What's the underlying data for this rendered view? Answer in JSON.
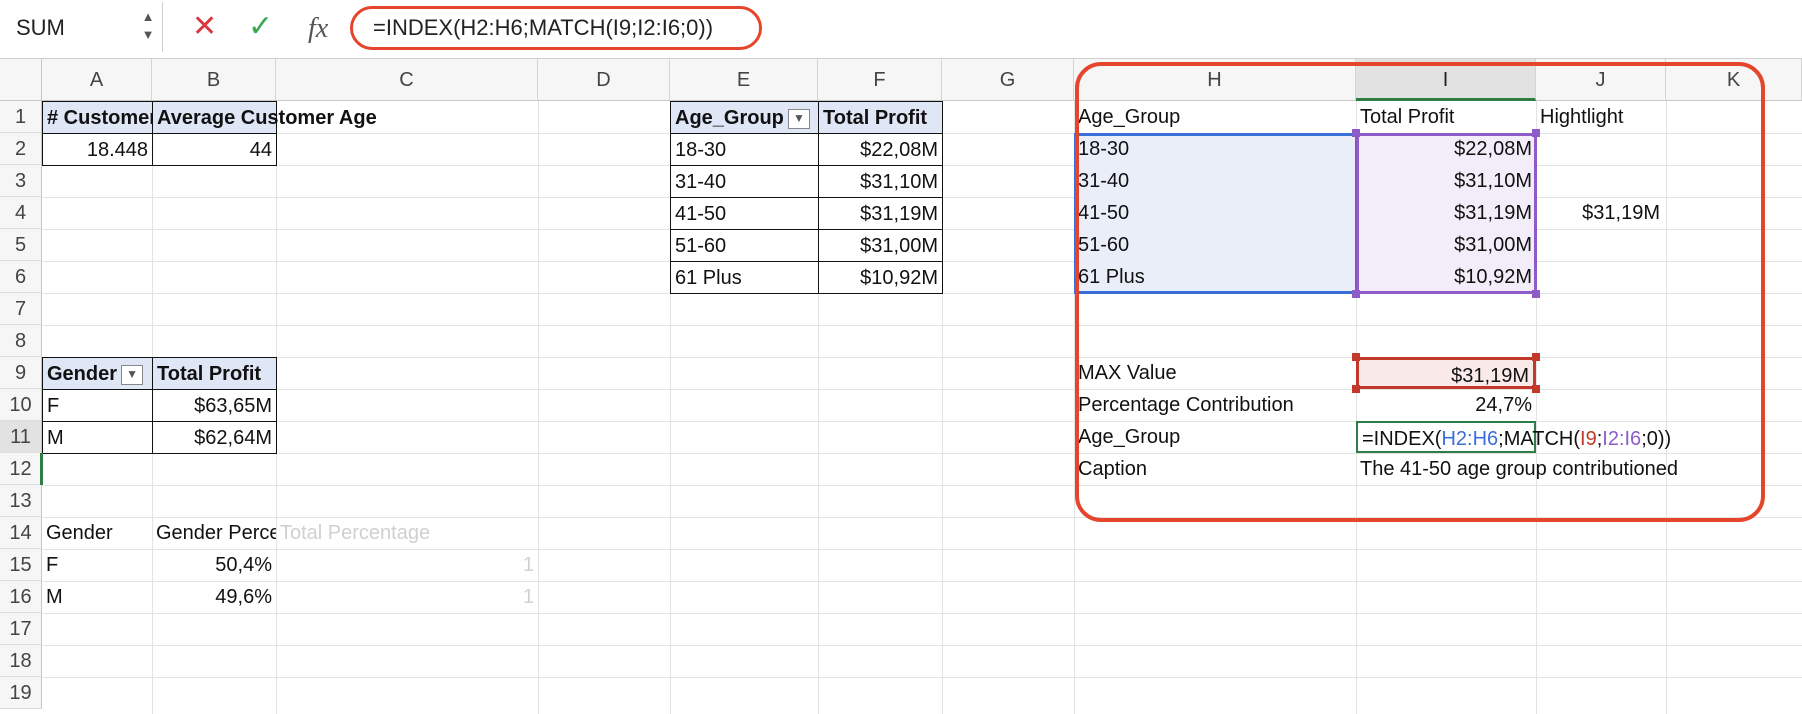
{
  "namebox": {
    "value": "SUM"
  },
  "formula_bar": {
    "cancel": "✕",
    "enter": "✓",
    "fx": "fx",
    "formula": "=INDEX(H2:H6;MATCH(I9;I2:I6;0))"
  },
  "columns": [
    "A",
    "B",
    "C",
    "D",
    "E",
    "F",
    "G",
    "H",
    "I",
    "J",
    "K"
  ],
  "rows": [
    "1",
    "2",
    "3",
    "4",
    "5",
    "6",
    "7",
    "8",
    "9",
    "10",
    "11",
    "12",
    "13",
    "14",
    "15",
    "16",
    "17",
    "18",
    "19"
  ],
  "table1": {
    "h1": "# Customers",
    "h2": "Average Customer Age",
    "v1": "18.448",
    "v2": "44"
  },
  "gender_table": {
    "h1": "Gender",
    "h2": "Total Profit",
    "rows": [
      {
        "g": "F",
        "p": "$63,65M"
      },
      {
        "g": "M",
        "p": "$62,64M"
      }
    ]
  },
  "pct_table": {
    "h1": "Gender",
    "h2": "Gender Percentage",
    "h3": "Total Percentage",
    "rows": [
      {
        "g": "F",
        "p": "50,4%",
        "t": "1"
      },
      {
        "g": "M",
        "p": "49,6%",
        "t": "1"
      }
    ]
  },
  "age_table": {
    "h1": "Age_Group",
    "h2": "Total Profit",
    "rows": [
      {
        "g": "18-30",
        "p": "$22,08M"
      },
      {
        "g": "31-40",
        "p": "$31,10M"
      },
      {
        "g": "41-50",
        "p": "$31,19M"
      },
      {
        "g": "51-60",
        "p": "$31,00M"
      },
      {
        "g": "61 Plus",
        "p": "$10,92M"
      }
    ]
  },
  "right_table": {
    "h1": "Age_Group",
    "h2": "Total Profit",
    "h3": "Hightlight",
    "rows": [
      {
        "g": "18-30",
        "p": "$22,08M",
        "h": ""
      },
      {
        "g": "31-40",
        "p": "$31,10M",
        "h": ""
      },
      {
        "g": "41-50",
        "p": "$31,19M",
        "h": "$31,19M"
      },
      {
        "g": "51-60",
        "p": "$31,00M",
        "h": ""
      },
      {
        "g": "61 Plus",
        "p": "$10,92M",
        "h": ""
      }
    ],
    "max_label": "MAX Value",
    "max_value": "$31,19M",
    "pct_label": "Percentage Contribution",
    "pct_value": "24,7%",
    "age_label": "Age_Group",
    "editing": {
      "f1": "=INDEX(",
      "f2": "H2:H6",
      "f3": ";MATCH(",
      "f4": "I9",
      "f5": ";",
      "f6": "I2:I6",
      "f7": ";0))"
    },
    "caption_label": "Caption",
    "caption_value": "The 41-50 age group contributioned"
  },
  "colors": {
    "annotation": "#e5452c",
    "active_cell": "#2f7d46",
    "ref_blue": "#3a6fd8",
    "ref_purple": "#8e5cc9",
    "ref_red": "#c0392b"
  }
}
